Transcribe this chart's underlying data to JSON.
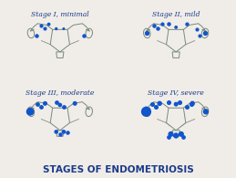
{
  "background_color": "#f0ede8",
  "title": "STAGES OF ENDOMETRIOSIS",
  "title_color": "#1a3a8a",
  "title_fontsize": 7.5,
  "title_fontweight": "bold",
  "stages": [
    {
      "label": "Stage I, minimal",
      "row": 0,
      "col": 0
    },
    {
      "label": "Stage II, mild",
      "row": 0,
      "col": 1
    },
    {
      "label": "Stage III, moderate",
      "row": 1,
      "col": 0
    },
    {
      "label": "Stage IV, severe",
      "row": 1,
      "col": 1
    }
  ],
  "label_color": "#1a3a8a",
  "label_fontsize": 5.5,
  "sketch_color": "#7a8a7a",
  "blue_spot_color": "#1155cc",
  "line_width": 0.7
}
